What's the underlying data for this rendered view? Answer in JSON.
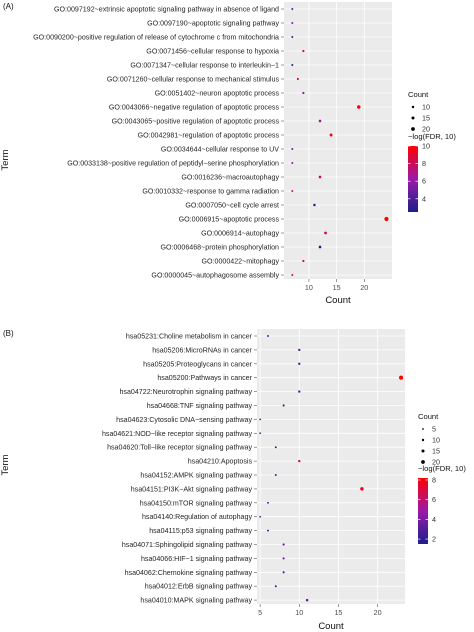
{
  "chart_data": [
    {
      "type": "scatter",
      "panel_label": "(A)",
      "xlabel": "Count",
      "ylabel": "Term",
      "xlim": [
        5.5,
        25
      ],
      "xticks": [
        "10",
        "15",
        "20"
      ],
      "size_legend_title": "Count",
      "size_legend_values": [
        "10",
        "15",
        "20"
      ],
      "color_legend_title": "−log(FDR, 10)",
      "color_range": [
        2.5,
        10
      ],
      "color_legend_ticks": [
        "10",
        "8",
        "6",
        "4"
      ],
      "terms": [
        "GO:0097192~extrinsic apoptotic signaling pathway in absence of ligand",
        "GO:0097190~apoptotic signaling pathway",
        "GO:0090200~positive regulation of release of cytochrome c from mitochondria",
        "GO:0071456~cellular response to hypoxia",
        "GO:0071347~cellular response to interleukin−1",
        "GO:0071260~cellular response to mechanical stimulus",
        "GO:0051402~neuron apoptotic process",
        "GO:0043066~negative regulation of apoptotic process",
        "GO:0043065~positive regulation of apoptotic process",
        "GO:0042981~regulation of apoptotic process",
        "GO:0034644~cellular response to UV",
        "GO:0033138~positive regulation of peptidyl−serine phosphorylation",
        "GO:0016236~macroautophagy",
        "GO:0010332~response to gamma radiation",
        "GO:0007050~cell cycle arrest",
        "GO:0006915~apoptotic process",
        "GO:0006914~autophagy",
        "GO:0006468~protein phosphorylation",
        "GO:0000422~mitophagy",
        "GO:0000045~autophagosome assembly"
      ],
      "counts": [
        7,
        7,
        7,
        9,
        7,
        8,
        9,
        19,
        12,
        14,
        7,
        7,
        12,
        7,
        11,
        24,
        13,
        12,
        9,
        7
      ],
      "neglog_fdr": [
        4.2,
        5.5,
        4.0,
        8.8,
        3.0,
        8.0,
        6.0,
        9.8,
        6.5,
        9.2,
        5.0,
        6.0,
        8.6,
        7.2,
        3.0,
        10.0,
        8.6,
        2.6,
        8.6,
        7.8
      ]
    },
    {
      "type": "scatter",
      "panel_label": "(B)",
      "xlabel": "Count",
      "ylabel": "Term",
      "xlim": [
        4.6,
        23.5
      ],
      "xticks": [
        "5",
        "10",
        "15",
        "20"
      ],
      "size_legend_title": "Count",
      "size_legend_values": [
        "5",
        "10",
        "15",
        "20"
      ],
      "color_legend_title": "−log(FDR, 10)",
      "color_range": [
        1.5,
        8.2
      ],
      "color_legend_ticks": [
        "8",
        "6",
        "4",
        "2"
      ],
      "terms": [
        "hsa05231:Choline metabolism in cancer",
        "hsa05206:MicroRNAs in cancer",
        "hsa05205:Proteoglycans in cancer",
        "hsa05200:Pathways in cancer",
        "hsa04722:Neurotrophin signaling pathway",
        "hsa04668:TNF signaling pathway",
        "hsa04623:Cytosolic DNA−sensing pathway",
        "hsa04621:NOD−like receptor signaling pathway",
        "hsa04620:Toll−like receptor signaling pathway",
        "hsa04210:Apoptosis",
        "hsa04152:AMPK signaling pathway",
        "hsa04151:PI3K−Akt signaling pathway",
        "hsa04150:mTOR signaling pathway",
        "hsa04140:Regulation of autophagy",
        "hsa04115:p53 signaling pathway",
        "hsa04071:Sphingolipid signaling pathway",
        "hsa04066:HIF−1 signaling pathway",
        "hsa04062:Chemokine signaling pathway",
        "hsa04012:ErbB signaling pathway",
        "hsa04010:MAPK signaling pathway"
      ],
      "counts": [
        6,
        10,
        10,
        23,
        10,
        8,
        5,
        5,
        7,
        10,
        7,
        18,
        6,
        5,
        6,
        8,
        8,
        8,
        7,
        11
      ],
      "neglog_fdr": [
        3.2,
        3.5,
        3.0,
        8.2,
        3.4,
        2.5,
        2.0,
        2.0,
        2.5,
        7.0,
        2.8,
        7.6,
        2.5,
        2.0,
        2.6,
        3.0,
        3.0,
        2.6,
        2.4,
        3.2
      ]
    }
  ]
}
